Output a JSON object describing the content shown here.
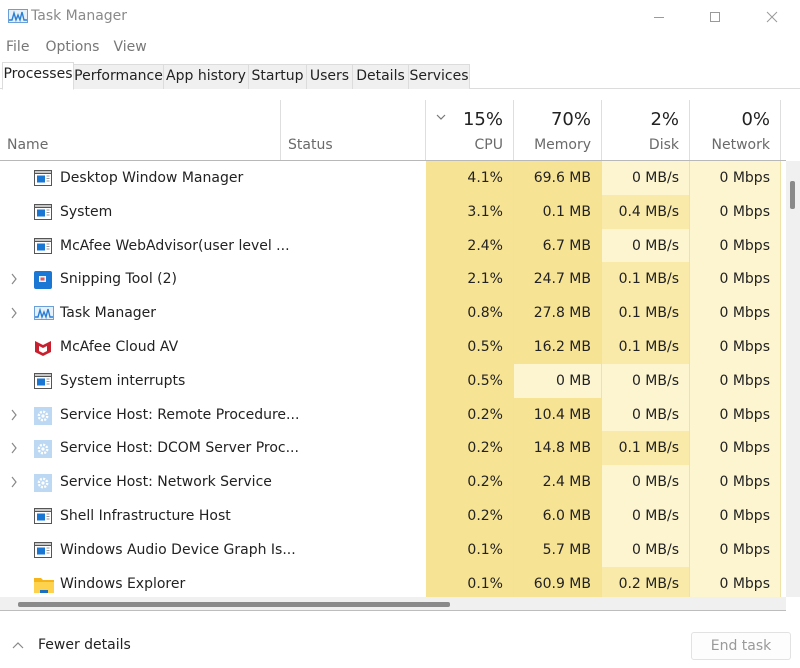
{
  "window": {
    "title": "Task Manager",
    "controls": {
      "minimize": "minimize",
      "maximize": "maximize",
      "close": "close"
    }
  },
  "menu": [
    "File",
    "Options",
    "View"
  ],
  "tabs": [
    {
      "label": "Processes",
      "active": true
    },
    {
      "label": "Performance",
      "active": false
    },
    {
      "label": "App history",
      "active": false
    },
    {
      "label": "Startup",
      "active": false
    },
    {
      "label": "Users",
      "active": false
    },
    {
      "label": "Details",
      "active": false
    },
    {
      "label": "Services",
      "active": false
    }
  ],
  "columns": {
    "name": {
      "label": "Name"
    },
    "status": {
      "label": "Status"
    },
    "cpu": {
      "pct": "15%",
      "label": "CPU"
    },
    "memory": {
      "pct": "70%",
      "label": "Memory"
    },
    "disk": {
      "pct": "2%",
      "label": "Disk"
    },
    "network": {
      "pct": "0%",
      "label": "Network"
    }
  },
  "colors": {
    "heat_low": "#fff4c4",
    "heat_mid": "#f9eca8",
    "heat_high": "#f5e28c",
    "accent": "#0a6fd1"
  },
  "processes": [
    {
      "name": "Desktop Window Manager",
      "icon": "window-icon",
      "expandable": false,
      "status": "",
      "cpu": "4.1%",
      "memory": "69.6 MB",
      "disk": "0 MB/s",
      "network": "0 Mbps"
    },
    {
      "name": "System",
      "icon": "window-icon",
      "expandable": false,
      "status": "",
      "cpu": "3.1%",
      "memory": "0.1 MB",
      "disk": "0.4 MB/s",
      "network": "0 Mbps"
    },
    {
      "name": "McAfee WebAdvisor(user level ...",
      "icon": "window-icon",
      "expandable": false,
      "status": "",
      "cpu": "2.4%",
      "memory": "6.7 MB",
      "disk": "0 MB/s",
      "network": "0 Mbps"
    },
    {
      "name": "Snipping Tool (2)",
      "icon": "snipping-tool-icon",
      "expandable": true,
      "status": "",
      "cpu": "2.1%",
      "memory": "24.7 MB",
      "disk": "0.1 MB/s",
      "network": "0 Mbps"
    },
    {
      "name": "Task Manager",
      "icon": "task-manager-icon",
      "expandable": true,
      "status": "",
      "cpu": "0.8%",
      "memory": "27.8 MB",
      "disk": "0.1 MB/s",
      "network": "0 Mbps"
    },
    {
      "name": "McAfee Cloud AV",
      "icon": "mcafee-icon",
      "expandable": false,
      "status": "",
      "cpu": "0.5%",
      "memory": "16.2 MB",
      "disk": "0.1 MB/s",
      "network": "0 Mbps"
    },
    {
      "name": "System interrupts",
      "icon": "window-icon",
      "expandable": false,
      "status": "",
      "cpu": "0.5%",
      "memory": "0 MB",
      "disk": "0 MB/s",
      "network": "0 Mbps"
    },
    {
      "name": "Service Host: Remote Procedure...",
      "icon": "gear-icon",
      "expandable": true,
      "status": "",
      "cpu": "0.2%",
      "memory": "10.4 MB",
      "disk": "0 MB/s",
      "network": "0 Mbps"
    },
    {
      "name": "Service Host: DCOM Server Proc...",
      "icon": "gear-icon",
      "expandable": true,
      "status": "",
      "cpu": "0.2%",
      "memory": "14.8 MB",
      "disk": "0.1 MB/s",
      "network": "0 Mbps"
    },
    {
      "name": "Service Host: Network Service",
      "icon": "gear-icon",
      "expandable": true,
      "status": "",
      "cpu": "0.2%",
      "memory": "2.4 MB",
      "disk": "0 MB/s",
      "network": "0 Mbps"
    },
    {
      "name": "Shell Infrastructure Host",
      "icon": "window-icon",
      "expandable": false,
      "status": "",
      "cpu": "0.2%",
      "memory": "6.0 MB",
      "disk": "0 MB/s",
      "network": "0 Mbps"
    },
    {
      "name": "Windows Audio Device Graph Is...",
      "icon": "window-icon",
      "expandable": false,
      "status": "",
      "cpu": "0.1%",
      "memory": "5.7 MB",
      "disk": "0 MB/s",
      "network": "0 Mbps"
    },
    {
      "name": "Windows Explorer",
      "icon": "folder-icon",
      "expandable": false,
      "status": "",
      "cpu": "0.1%",
      "memory": "60.9 MB",
      "disk": "0.2 MB/s",
      "network": "0 Mbps"
    }
  ],
  "footer": {
    "fewer_details": "Fewer details",
    "end_task": "End task"
  }
}
